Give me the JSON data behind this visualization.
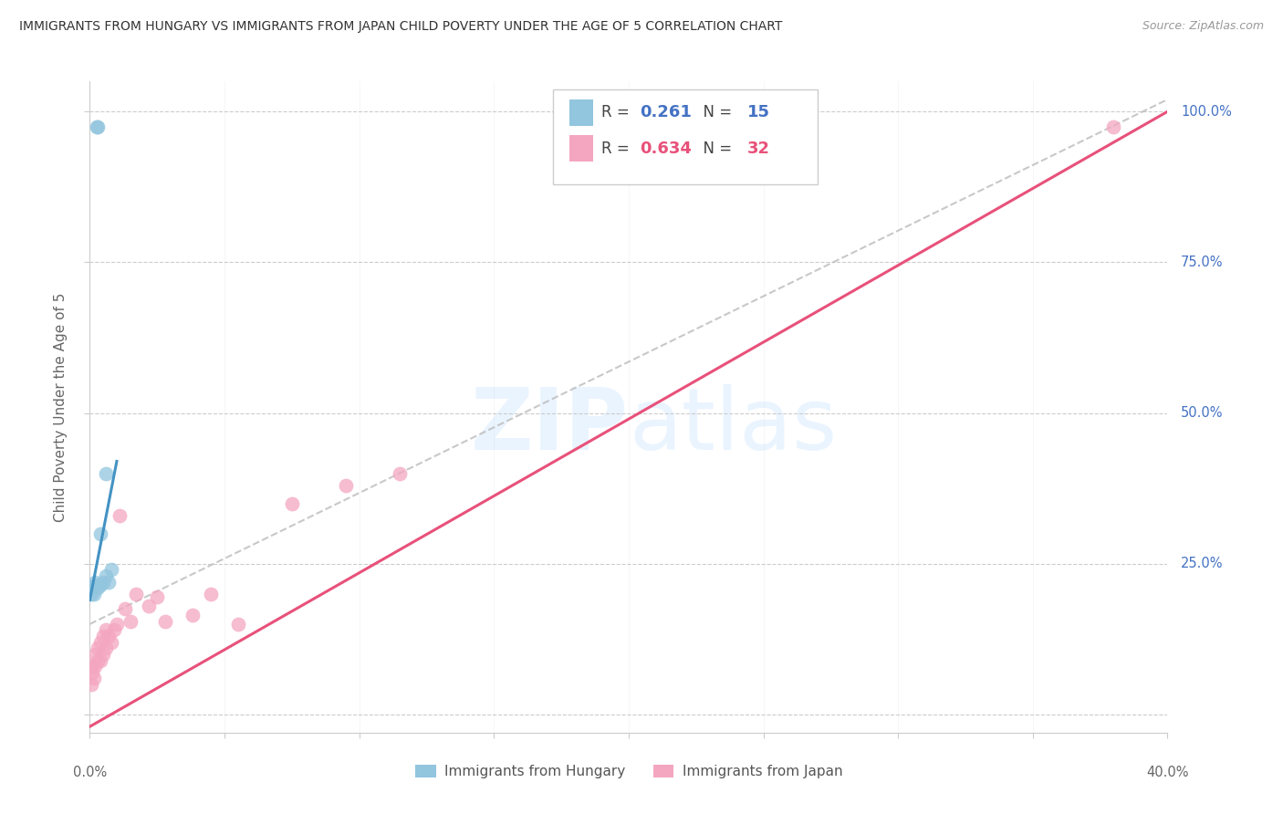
{
  "title": "IMMIGRANTS FROM HUNGARY VS IMMIGRANTS FROM JAPAN CHILD POVERTY UNDER THE AGE OF 5 CORRELATION CHART",
  "source": "Source: ZipAtlas.com",
  "ylabel": "Child Poverty Under the Age of 5",
  "legend_bottom_hungary": "Immigrants from Hungary",
  "legend_bottom_japan": "Immigrants from Japan",
  "hungary_color": "#92c5de",
  "japan_color": "#f4a6c0",
  "hungary_line_color": "#4393c3",
  "japan_line_color": "#e8517a",
  "dashed_line_color": "#bbbbbb",
  "background_color": "#ffffff",
  "grid_color": "#cccccc",
  "title_color": "#333333",
  "right_axis_color": "#4472c4",
  "xlim": [
    0.0,
    0.4
  ],
  "ylim": [
    -0.03,
    1.05
  ],
  "hungary_x": [
    0.0005,
    0.001,
    0.0015,
    0.002,
    0.002,
    0.003,
    0.003,
    0.004,
    0.005,
    0.006,
    0.007,
    0.008,
    0.0025,
    0.004,
    0.006
  ],
  "hungary_y": [
    0.2,
    0.21,
    0.2,
    0.215,
    0.22,
    0.21,
    0.975,
    0.215,
    0.22,
    0.23,
    0.22,
    0.24,
    0.975,
    0.3,
    0.4
  ],
  "japan_x": [
    0.0005,
    0.001,
    0.001,
    0.0015,
    0.002,
    0.002,
    0.003,
    0.003,
    0.004,
    0.004,
    0.005,
    0.005,
    0.006,
    0.006,
    0.007,
    0.008,
    0.009,
    0.01,
    0.011,
    0.013,
    0.015,
    0.017,
    0.022,
    0.025,
    0.028,
    0.038,
    0.045,
    0.055,
    0.075,
    0.095,
    0.115,
    0.38
  ],
  "japan_y": [
    0.05,
    0.07,
    0.08,
    0.06,
    0.08,
    0.1,
    0.09,
    0.11,
    0.09,
    0.12,
    0.1,
    0.13,
    0.11,
    0.14,
    0.13,
    0.12,
    0.14,
    0.15,
    0.33,
    0.175,
    0.155,
    0.2,
    0.18,
    0.195,
    0.155,
    0.165,
    0.2,
    0.15,
    0.35,
    0.38,
    0.4,
    0.975
  ],
  "japan_line_x0": 0.0,
  "japan_line_y0": -0.02,
  "japan_line_x1": 0.4,
  "japan_line_y1": 1.0,
  "hungary_line_x0": 0.0,
  "hungary_line_y0": 0.19,
  "hungary_line_x1": 0.01,
  "hungary_line_y1": 0.42,
  "dash_line_x0": 0.0,
  "dash_line_y0": 0.15,
  "dash_line_x1": 0.4,
  "dash_line_y1": 1.02
}
